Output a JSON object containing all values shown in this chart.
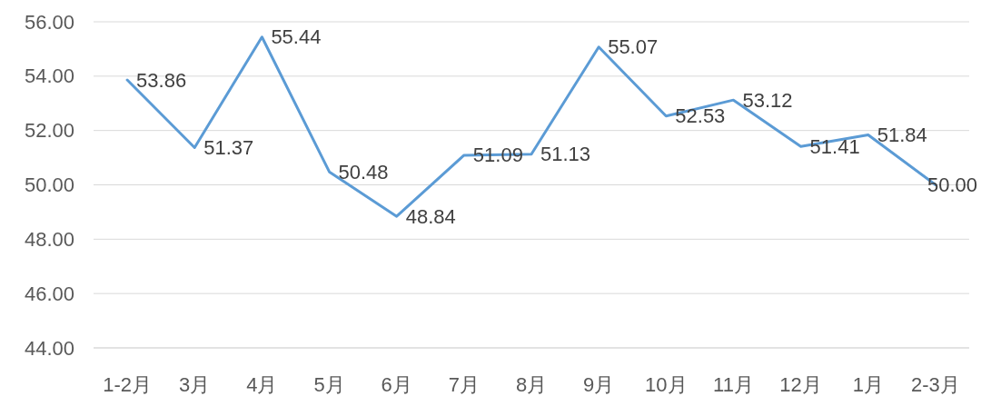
{
  "chart_data": {
    "type": "line",
    "categories": [
      "1-2月",
      "3月",
      "4月",
      "5月",
      "6月",
      "7月",
      "8月",
      "9月",
      "10月",
      "11月",
      "12月",
      "1月",
      "2-3月"
    ],
    "series": [
      {
        "color": "#5b9bd5",
        "values": [
          53.86,
          51.37,
          55.44,
          50.48,
          48.84,
          51.09,
          51.13,
          55.07,
          52.53,
          53.12,
          51.41,
          51.84,
          50.0
        ],
        "value_labels": [
          "53.86",
          "51.37",
          "55.44",
          "50.48",
          "48.84",
          "51.09",
          "51.13",
          "55.07",
          "52.53",
          "53.12",
          "51.41",
          "51.84",
          "50.00"
        ]
      }
    ],
    "ylim": [
      44,
      56
    ],
    "yticks": [
      {
        "value": 44,
        "label": "44.00"
      },
      {
        "value": 46,
        "label": "46.00"
      },
      {
        "value": 48,
        "label": "48.00"
      },
      {
        "value": 50,
        "label": "50.00"
      },
      {
        "value": 52,
        "label": "52.00"
      },
      {
        "value": 54,
        "label": "54.00"
      },
      {
        "value": 56,
        "label": "56.00"
      }
    ],
    "grid": "y",
    "marker": "none",
    "line_style": "solid"
  }
}
